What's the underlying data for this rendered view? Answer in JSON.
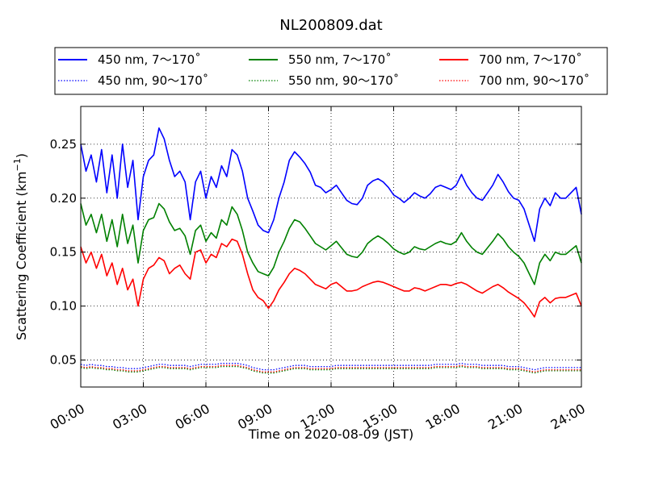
{
  "chart_data": {
    "type": "line",
    "title": "NL200809.dat",
    "xlabel": "Time on 2020-08-09 (JST)",
    "ylabel_main": "Scattering Coefficient (km",
    "ylabel_sup": "−1",
    "ylabel_close": ")",
    "xlim": [
      "00:00",
      "24:00"
    ],
    "ylim": [
      0.025,
      0.285
    ],
    "grid": true,
    "legend_position": "top",
    "x_tick_labels": [
      "00:00",
      "03:00",
      "06:00",
      "09:00",
      "12:00",
      "15:00",
      "18:00",
      "21:00",
      "24:00"
    ],
    "y_ticks": [
      0.05,
      0.1,
      0.15,
      0.2,
      0.25
    ],
    "y_tick_labels": [
      "0.05",
      "0.10",
      "0.15",
      "0.20",
      "0.25"
    ],
    "x_hours": [
      0,
      0.25,
      0.5,
      0.75,
      1,
      1.25,
      1.5,
      1.75,
      2,
      2.25,
      2.5,
      2.75,
      3,
      3.25,
      3.5,
      3.75,
      4,
      4.25,
      4.5,
      4.75,
      5,
      5.25,
      5.5,
      5.75,
      6,
      6.25,
      6.5,
      6.75,
      7,
      7.25,
      7.5,
      7.75,
      8,
      8.25,
      8.5,
      8.75,
      9,
      9.25,
      9.5,
      9.75,
      10,
      10.25,
      10.5,
      10.75,
      11,
      11.25,
      11.5,
      11.75,
      12,
      12.25,
      12.5,
      12.75,
      13,
      13.25,
      13.5,
      13.75,
      14,
      14.25,
      14.5,
      14.75,
      15,
      15.25,
      15.5,
      15.75,
      16,
      16.25,
      16.5,
      16.75,
      17,
      17.25,
      17.5,
      17.75,
      18,
      18.25,
      18.5,
      18.75,
      19,
      19.25,
      19.5,
      19.75,
      20,
      20.25,
      20.5,
      20.75,
      21,
      21.25,
      21.5,
      21.75,
      22,
      22.25,
      22.5,
      22.75,
      23,
      23.25,
      23.5,
      23.75,
      24
    ],
    "series": [
      {
        "name": "450 nm, 7～170˚",
        "color": "#0000ff",
        "style": "solid",
        "values": [
          0.25,
          0.225,
          0.24,
          0.215,
          0.245,
          0.205,
          0.24,
          0.2,
          0.25,
          0.21,
          0.235,
          0.18,
          0.22,
          0.235,
          0.24,
          0.265,
          0.255,
          0.235,
          0.22,
          0.225,
          0.215,
          0.18,
          0.215,
          0.225,
          0.2,
          0.22,
          0.21,
          0.23,
          0.22,
          0.245,
          0.24,
          0.225,
          0.2,
          0.188,
          0.175,
          0.17,
          0.168,
          0.18,
          0.2,
          0.215,
          0.235,
          0.243,
          0.238,
          0.232,
          0.224,
          0.212,
          0.21,
          0.205,
          0.208,
          0.212,
          0.205,
          0.198,
          0.195,
          0.194,
          0.2,
          0.212,
          0.216,
          0.218,
          0.215,
          0.21,
          0.203,
          0.2,
          0.196,
          0.2,
          0.205,
          0.202,
          0.2,
          0.204,
          0.21,
          0.212,
          0.21,
          0.208,
          0.212,
          0.222,
          0.212,
          0.205,
          0.2,
          0.198,
          0.205,
          0.212,
          0.222,
          0.215,
          0.206,
          0.2,
          0.198,
          0.19,
          0.175,
          0.16,
          0.19,
          0.2,
          0.193,
          0.205,
          0.2,
          0.2,
          0.205,
          0.21,
          0.185
        ]
      },
      {
        "name": "550 nm, 7～170˚",
        "color": "#008000",
        "style": "solid",
        "values": [
          0.195,
          0.175,
          0.185,
          0.168,
          0.185,
          0.16,
          0.18,
          0.155,
          0.185,
          0.158,
          0.175,
          0.14,
          0.17,
          0.18,
          0.182,
          0.195,
          0.19,
          0.178,
          0.17,
          0.172,
          0.165,
          0.148,
          0.17,
          0.175,
          0.16,
          0.168,
          0.163,
          0.18,
          0.175,
          0.192,
          0.185,
          0.17,
          0.15,
          0.14,
          0.132,
          0.13,
          0.128,
          0.136,
          0.15,
          0.16,
          0.172,
          0.18,
          0.178,
          0.172,
          0.165,
          0.158,
          0.155,
          0.152,
          0.156,
          0.16,
          0.154,
          0.148,
          0.146,
          0.145,
          0.15,
          0.158,
          0.162,
          0.165,
          0.162,
          0.158,
          0.153,
          0.15,
          0.148,
          0.15,
          0.155,
          0.153,
          0.152,
          0.155,
          0.158,
          0.16,
          0.158,
          0.157,
          0.16,
          0.168,
          0.16,
          0.154,
          0.15,
          0.148,
          0.154,
          0.16,
          0.167,
          0.162,
          0.155,
          0.15,
          0.146,
          0.14,
          0.13,
          0.12,
          0.14,
          0.148,
          0.142,
          0.15,
          0.148,
          0.148,
          0.152,
          0.156,
          0.14
        ]
      },
      {
        "name": "700 nm, 7～170˚",
        "color": "#ff0000",
        "style": "solid",
        "values": [
          0.155,
          0.14,
          0.15,
          0.135,
          0.148,
          0.128,
          0.14,
          0.12,
          0.135,
          0.115,
          0.125,
          0.1,
          0.125,
          0.135,
          0.138,
          0.145,
          0.142,
          0.13,
          0.135,
          0.138,
          0.13,
          0.125,
          0.15,
          0.152,
          0.14,
          0.148,
          0.145,
          0.158,
          0.155,
          0.162,
          0.16,
          0.148,
          0.13,
          0.115,
          0.108,
          0.105,
          0.098,
          0.105,
          0.115,
          0.122,
          0.13,
          0.135,
          0.133,
          0.13,
          0.125,
          0.12,
          0.118,
          0.116,
          0.12,
          0.122,
          0.118,
          0.114,
          0.114,
          0.115,
          0.118,
          0.12,
          0.122,
          0.123,
          0.122,
          0.12,
          0.118,
          0.116,
          0.114,
          0.114,
          0.117,
          0.116,
          0.114,
          0.116,
          0.118,
          0.12,
          0.12,
          0.119,
          0.121,
          0.122,
          0.12,
          0.117,
          0.114,
          0.112,
          0.115,
          0.118,
          0.12,
          0.117,
          0.113,
          0.11,
          0.107,
          0.103,
          0.097,
          0.09,
          0.104,
          0.108,
          0.103,
          0.107,
          0.108,
          0.108,
          0.11,
          0.112,
          0.1
        ]
      },
      {
        "name": "450 nm, 90～170˚",
        "color": "#0000ff",
        "style": "dotted",
        "values": [
          0.046,
          0.045,
          0.046,
          0.045,
          0.045,
          0.044,
          0.044,
          0.043,
          0.043,
          0.042,
          0.042,
          0.042,
          0.043,
          0.044,
          0.045,
          0.046,
          0.046,
          0.045,
          0.045,
          0.045,
          0.045,
          0.044,
          0.045,
          0.046,
          0.046,
          0.046,
          0.046,
          0.047,
          0.047,
          0.047,
          0.047,
          0.046,
          0.045,
          0.043,
          0.042,
          0.041,
          0.041,
          0.041,
          0.042,
          0.043,
          0.044,
          0.045,
          0.045,
          0.045,
          0.044,
          0.044,
          0.044,
          0.044,
          0.044,
          0.045,
          0.045,
          0.045,
          0.045,
          0.045,
          0.045,
          0.045,
          0.045,
          0.045,
          0.045,
          0.045,
          0.045,
          0.045,
          0.045,
          0.045,
          0.045,
          0.045,
          0.045,
          0.045,
          0.046,
          0.046,
          0.046,
          0.046,
          0.046,
          0.047,
          0.046,
          0.046,
          0.046,
          0.045,
          0.045,
          0.045,
          0.045,
          0.045,
          0.044,
          0.044,
          0.044,
          0.043,
          0.042,
          0.041,
          0.042,
          0.043,
          0.043,
          0.043,
          0.043,
          0.043,
          0.043,
          0.043,
          0.043
        ]
      },
      {
        "name": "550 nm, 90～170˚",
        "color": "#008000",
        "style": "dotted",
        "values": [
          0.043,
          0.042,
          0.043,
          0.042,
          0.042,
          0.041,
          0.041,
          0.04,
          0.04,
          0.039,
          0.039,
          0.039,
          0.04,
          0.041,
          0.042,
          0.043,
          0.043,
          0.042,
          0.042,
          0.042,
          0.042,
          0.041,
          0.042,
          0.043,
          0.043,
          0.043,
          0.043,
          0.044,
          0.044,
          0.044,
          0.044,
          0.043,
          0.042,
          0.04,
          0.039,
          0.038,
          0.038,
          0.038,
          0.039,
          0.04,
          0.041,
          0.042,
          0.042,
          0.042,
          0.041,
          0.041,
          0.041,
          0.041,
          0.041,
          0.042,
          0.042,
          0.042,
          0.042,
          0.042,
          0.042,
          0.042,
          0.042,
          0.042,
          0.042,
          0.042,
          0.042,
          0.042,
          0.042,
          0.042,
          0.042,
          0.042,
          0.042,
          0.042,
          0.043,
          0.043,
          0.043,
          0.043,
          0.043,
          0.044,
          0.043,
          0.043,
          0.043,
          0.042,
          0.042,
          0.042,
          0.042,
          0.042,
          0.041,
          0.041,
          0.041,
          0.04,
          0.039,
          0.038,
          0.039,
          0.04,
          0.04,
          0.04,
          0.04,
          0.04,
          0.04,
          0.04,
          0.04
        ]
      },
      {
        "name": "700 nm, 90～170˚",
        "color": "#ff0000",
        "style": "dotted",
        "values": [
          0.044,
          0.043,
          0.044,
          0.043,
          0.043,
          0.042,
          0.042,
          0.041,
          0.041,
          0.04,
          0.04,
          0.04,
          0.041,
          0.042,
          0.043,
          0.044,
          0.044,
          0.043,
          0.043,
          0.043,
          0.043,
          0.042,
          0.043,
          0.044,
          0.044,
          0.044,
          0.044,
          0.045,
          0.045,
          0.045,
          0.045,
          0.044,
          0.043,
          0.041,
          0.04,
          0.039,
          0.039,
          0.039,
          0.04,
          0.041,
          0.042,
          0.043,
          0.043,
          0.043,
          0.042,
          0.042,
          0.042,
          0.042,
          0.042,
          0.043,
          0.043,
          0.043,
          0.043,
          0.043,
          0.043,
          0.043,
          0.043,
          0.043,
          0.043,
          0.043,
          0.043,
          0.043,
          0.043,
          0.043,
          0.043,
          0.043,
          0.043,
          0.043,
          0.044,
          0.044,
          0.044,
          0.044,
          0.044,
          0.045,
          0.044,
          0.044,
          0.044,
          0.043,
          0.043,
          0.043,
          0.043,
          0.043,
          0.042,
          0.042,
          0.042,
          0.041,
          0.04,
          0.039,
          0.04,
          0.041,
          0.041,
          0.041,
          0.041,
          0.041,
          0.041,
          0.041,
          0.041
        ]
      }
    ]
  }
}
